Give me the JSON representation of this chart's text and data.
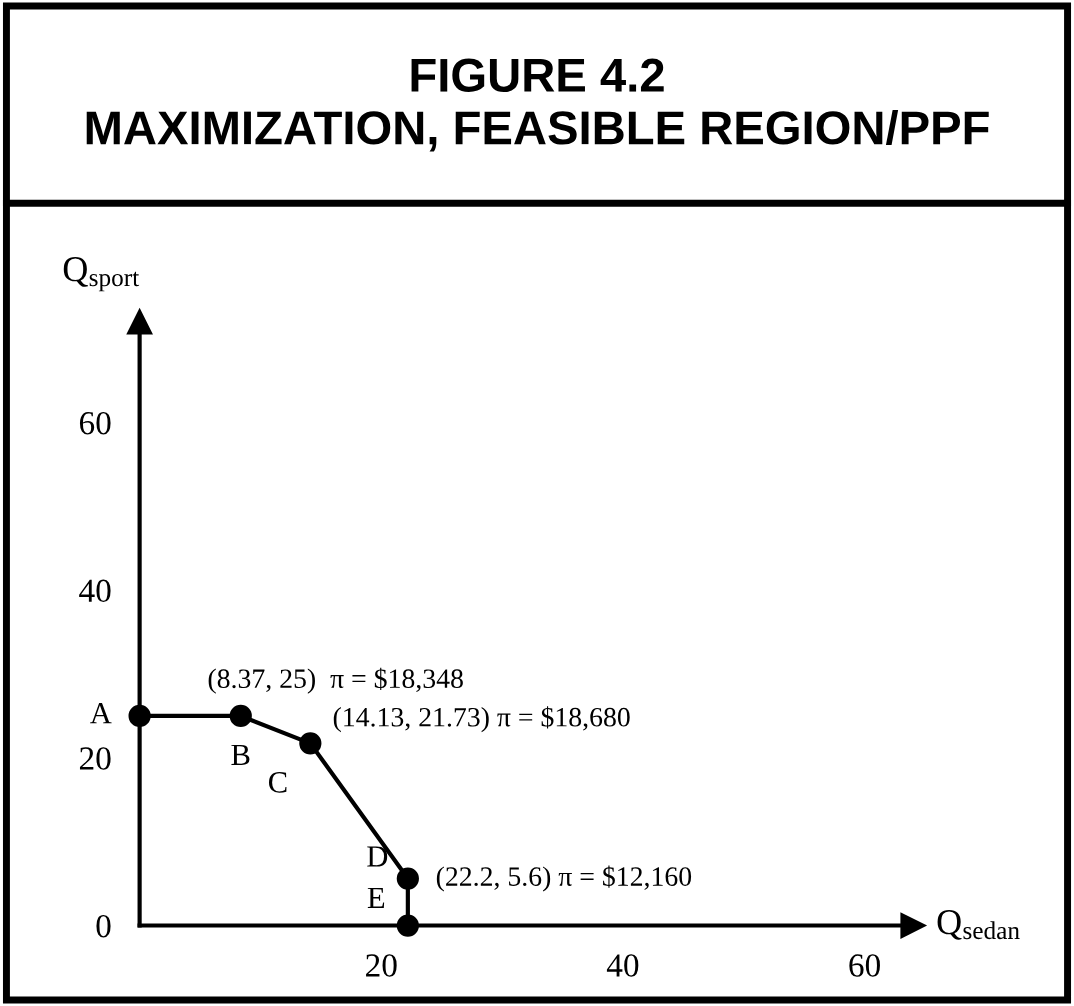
{
  "chart_data": {
    "type": "line",
    "title": "FIGURE 4.2\nMAXIMIZATION, FEASIBLE REGION/PPF",
    "xlabel": "Q$_{sedan}$",
    "ylabel": "Q$_{sport}$",
    "x": [
      0,
      8.37,
      14.13,
      22.2,
      22.2
    ],
    "series": [
      {
        "color": "#000000",
        "values": [
          25,
          25,
          21.73,
          5.6,
          0
        ]
      }
    ],
    "marker": "circle",
    "line_style": "solid",
    "grid": false,
    "xlim": [
      0,
      64
    ],
    "ylim": [
      0,
      72
    ],
    "xticks": [
      20,
      40,
      60
    ],
    "yticks": [
      0,
      20,
      40,
      60
    ],
    "annotations": [
      {
        "text": "A",
        "x": 0,
        "y": 25
      },
      {
        "text": "B",
        "x": 8.37,
        "y": 25
      },
      {
        "text": "C",
        "x": 14.13,
        "y": 21.73
      },
      {
        "text": "D",
        "x": 22.2,
        "y": 5.6
      },
      {
        "text": "E",
        "x": 22.2,
        "y": 0
      },
      {
        "text": "(8.37, 25)  π = $18,348",
        "x": 8.37,
        "y": 25
      },
      {
        "text": "(14.13, 21.73) π = $18,680",
        "x": 14.13,
        "y": 21.73
      },
      {
        "text": "(22.2, 5.6) π = $12,160",
        "x": 22.2,
        "y": 5.6
      }
    ]
  }
}
